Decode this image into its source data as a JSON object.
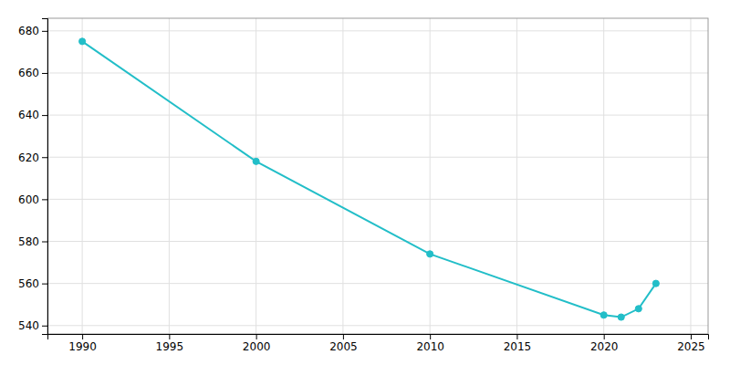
{
  "chart_data": {
    "type": "line",
    "x": [
      1990,
      2000,
      2010,
      2020,
      2021,
      2022,
      2023
    ],
    "values": [
      675,
      618,
      574,
      545,
      544,
      548,
      560
    ],
    "color": "#22BEC8",
    "marker": "circle",
    "xlim": [
      1988,
      2026
    ],
    "ylim": [
      536,
      686
    ],
    "xticks": [
      1990,
      1995,
      2000,
      2005,
      2010,
      2015,
      2020,
      2025
    ],
    "yticks": [
      540,
      560,
      580,
      600,
      620,
      640,
      660,
      680
    ],
    "grid": true
  }
}
